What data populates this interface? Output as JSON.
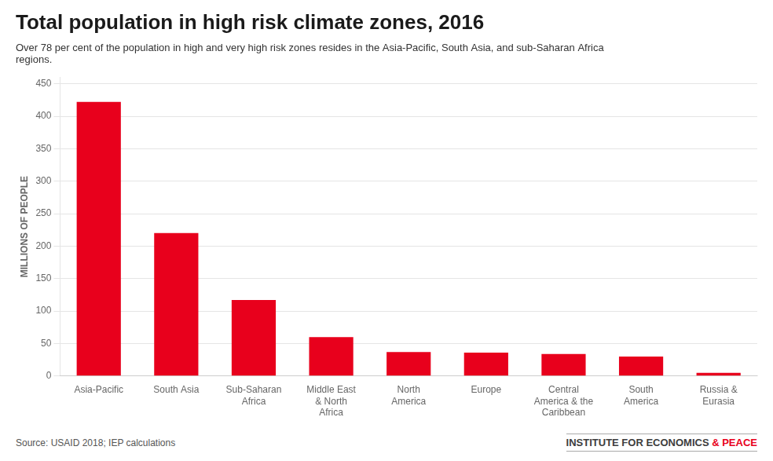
{
  "chart_data": {
    "type": "bar",
    "title": "Total population in high risk climate zones, 2016",
    "subtitle": "Over 78 per cent of the population in high and very high risk zones resides in the Asia-Pacific, South Asia, and sub-Saharan Africa\nregions.",
    "categories": [
      "Asia-Pacific",
      "South Asia",
      "Sub-Saharan\nAfrica",
      "Middle East\n& North\nAfrica",
      "North\nAmerica",
      "Europe",
      "Central\nAmerica & the\nCaribbean",
      "South\nAmerica",
      "Russia &\nEurasia"
    ],
    "values": [
      422,
      220,
      117,
      60,
      37,
      36,
      34,
      30,
      5
    ],
    "color": "#e8001c",
    "ylabel": "MILLIONS OF PEOPLE",
    "ylim": [
      0,
      460
    ],
    "yticks": [
      0,
      50,
      100,
      150,
      200,
      250,
      300,
      350,
      400,
      450
    ],
    "grid": true,
    "annotations": [
      {
        "text": "Source: USAID 2018; IEP calculations"
      },
      {
        "text": "INSTITUTE FOR ECONOMICS ",
        "color": "#3d3d3d"
      },
      {
        "text": "& PEACE",
        "color": "#e8001c"
      }
    ]
  }
}
